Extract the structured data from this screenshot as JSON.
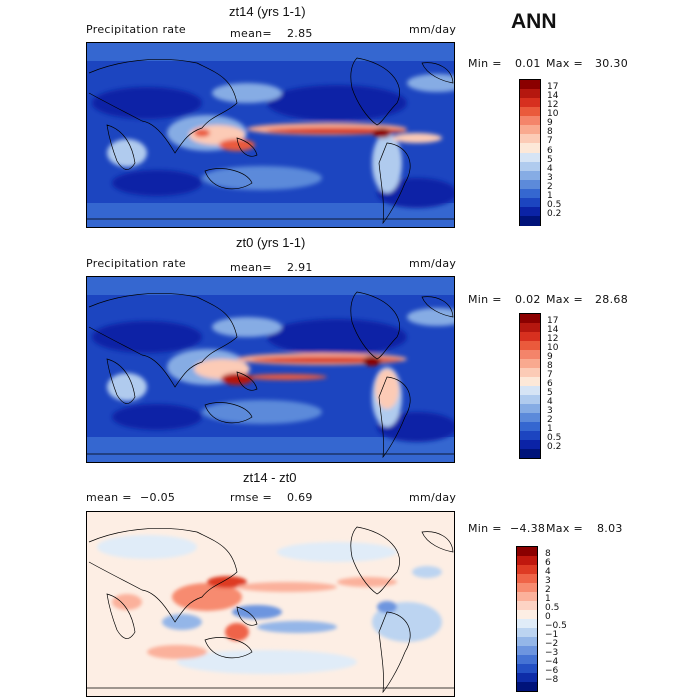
{
  "season": "ANN",
  "panels": [
    {
      "title": "zt14 (yrs 1-1)",
      "left_text": "Precipitation rate",
      "mean_label": "mean=",
      "mean_value": "2.85",
      "units": "mm/day",
      "min_label": "Min =",
      "min_value": "0.01",
      "max_label": "Max =",
      "max_value": "30.30",
      "colorbar_labels": [
        "17",
        "14",
        "12",
        "10",
        "9",
        "8",
        "7",
        "6",
        "5",
        "4",
        "3",
        "2",
        "1",
        "0.5",
        "0.2"
      ],
      "colorbar_colors": [
        "#8b0000",
        "#b5170f",
        "#d7301f",
        "#ea5a3c",
        "#f4846a",
        "#f9a98f",
        "#fccbb6",
        "#fde8d8",
        "#d6e4f5",
        "#b0cbee",
        "#86ace4",
        "#5c8ada",
        "#3567d0",
        "#1c45c0",
        "#0b23a6",
        "#00137a"
      ]
    },
    {
      "title": "zt0 (yrs 1-1)",
      "left_text": "Precipitation rate",
      "mean_label": "mean=",
      "mean_value": "2.91",
      "units": "mm/day",
      "min_label": "Min =",
      "min_value": "0.02",
      "max_label": "Max =",
      "max_value": "28.68",
      "colorbar_labels": [
        "17",
        "14",
        "12",
        "10",
        "9",
        "8",
        "7",
        "6",
        "5",
        "4",
        "3",
        "2",
        "1",
        "0.5",
        "0.2"
      ],
      "colorbar_colors": [
        "#8b0000",
        "#b5170f",
        "#d7301f",
        "#ea5a3c",
        "#f4846a",
        "#f9a98f",
        "#fccbb6",
        "#fde8d8",
        "#d6e4f5",
        "#b0cbee",
        "#86ace4",
        "#5c8ada",
        "#3567d0",
        "#1c45c0",
        "#0b23a6",
        "#00137a"
      ]
    },
    {
      "title": "zt14 - zt0",
      "left_text": "mean =",
      "mean_value": "−0.05",
      "mean_label": "rmse =",
      "rmse_value": "0.69",
      "units": "mm/day",
      "min_label": "Min =",
      "min_value": "−4.38",
      "max_label": "Max =",
      "max_value": "8.03",
      "colorbar_labels": [
        "8",
        "6",
        "4",
        "3",
        "2",
        "1",
        "0.5",
        "0",
        "−0.5",
        "−1",
        "−2",
        "−3",
        "−4",
        "−6",
        "−8"
      ],
      "colorbar_colors": [
        "#8b0000",
        "#c0180e",
        "#de3b24",
        "#ef6448",
        "#f78b70",
        "#fbb19b",
        "#fdd3c4",
        "#fdeee4",
        "#e0ecf8",
        "#bcd4f1",
        "#94b6e8",
        "#6d95df",
        "#4573d4",
        "#2450c4",
        "#0e2ca8",
        "#00137a"
      ]
    }
  ]
}
